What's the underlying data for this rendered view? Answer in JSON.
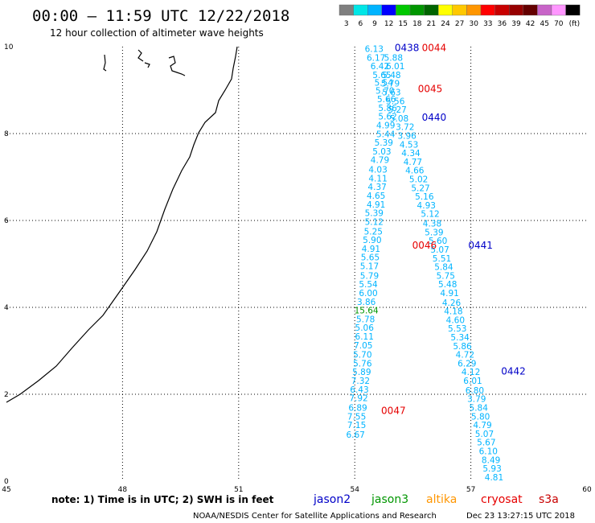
{
  "header": {
    "title": "00:00 — 11:59 UTC 12/22/2018",
    "subtitle": "12 hour collection of altimeter wave heights"
  },
  "colorbar": {
    "colors": [
      "#7f7f7f",
      "#00e6e6",
      "#00b4ff",
      "#0000ff",
      "#00c800",
      "#009600",
      "#006400",
      "#ffff00",
      "#ffc800",
      "#ff9600",
      "#ff0000",
      "#c80000",
      "#960000",
      "#640000",
      "#c864c8",
      "#ff96ff",
      "#000000"
    ],
    "labels": [
      "3",
      "6",
      "9",
      "12",
      "15",
      "18",
      "21",
      "24",
      "27",
      "30",
      "33",
      "36",
      "39",
      "42",
      "45",
      "70",
      "(ft)"
    ]
  },
  "axes": {
    "x_ticks": [
      "45",
      "48",
      "51",
      "54",
      "57",
      "60"
    ],
    "x_values": [
      45,
      48,
      51,
      54,
      57,
      60
    ],
    "y_ticks": [
      "0",
      "2",
      "4",
      "6",
      "8",
      "10"
    ],
    "y_values": [
      0,
      2,
      4,
      6,
      8,
      10
    ],
    "xlim": [
      45,
      60
    ],
    "ylim": [
      0,
      10
    ]
  },
  "colors": {
    "jason2": "#0000c8",
    "jason3": "#009600",
    "altika": "#ff9600",
    "cryosat": "#e60000",
    "s3a": "#c80000",
    "wave": "#00b4ff",
    "wave_green": "#009600"
  },
  "track_a": [
    {
      "x": 54.5,
      "y": 9.88,
      "v": "6.13"
    },
    {
      "x": 54.55,
      "y": 9.68,
      "v": "6.17"
    },
    {
      "x": 54.65,
      "y": 9.48,
      "v": "6.42"
    },
    {
      "x": 54.7,
      "y": 9.28,
      "v": "5.65"
    },
    {
      "x": 54.75,
      "y": 9.1,
      "v": "5.54"
    },
    {
      "x": 54.78,
      "y": 8.92,
      "v": "5.70"
    },
    {
      "x": 54.82,
      "y": 8.72,
      "v": "5.66"
    },
    {
      "x": 54.85,
      "y": 8.52,
      "v": "5.86"
    },
    {
      "x": 54.85,
      "y": 8.32,
      "v": "5.62"
    },
    {
      "x": 54.8,
      "y": 8.12,
      "v": "4.99"
    },
    {
      "x": 54.8,
      "y": 7.92,
      "v": "5.44"
    },
    {
      "x": 54.75,
      "y": 7.72,
      "v": "5.39"
    },
    {
      "x": 54.7,
      "y": 7.52,
      "v": "5.03"
    },
    {
      "x": 54.65,
      "y": 7.32,
      "v": "4.79"
    },
    {
      "x": 54.6,
      "y": 7.1,
      "v": "4.03"
    },
    {
      "x": 54.6,
      "y": 6.9,
      "v": "4.11"
    },
    {
      "x": 54.58,
      "y": 6.7,
      "v": "4.37"
    },
    {
      "x": 54.55,
      "y": 6.5,
      "v": "4.65"
    },
    {
      "x": 54.55,
      "y": 6.3,
      "v": "4.91"
    },
    {
      "x": 54.5,
      "y": 6.1,
      "v": "5.39"
    },
    {
      "x": 54.5,
      "y": 5.9,
      "v": "5.12"
    },
    {
      "x": 54.48,
      "y": 5.68,
      "v": "5.25"
    },
    {
      "x": 54.45,
      "y": 5.48,
      "v": "5.90"
    },
    {
      "x": 54.42,
      "y": 5.28,
      "v": "4.91"
    },
    {
      "x": 54.4,
      "y": 5.08,
      "v": "5.65"
    },
    {
      "x": 54.38,
      "y": 4.88,
      "v": "5.17"
    },
    {
      "x": 54.38,
      "y": 4.66,
      "v": "5.79"
    },
    {
      "x": 54.35,
      "y": 4.46,
      "v": "5.54"
    },
    {
      "x": 54.35,
      "y": 4.26,
      "v": "6.00"
    },
    {
      "x": 54.3,
      "y": 4.06,
      "v": "3.86"
    },
    {
      "x": 54.3,
      "y": 3.86,
      "v": "15.64"
    },
    {
      "x": 54.28,
      "y": 3.66,
      "v": "5.78"
    },
    {
      "x": 54.25,
      "y": 3.46,
      "v": "5.06"
    },
    {
      "x": 54.25,
      "y": 3.26,
      "v": "6.11"
    },
    {
      "x": 54.22,
      "y": 3.06,
      "v": "7.05"
    },
    {
      "x": 54.2,
      "y": 2.84,
      "v": "5.70"
    },
    {
      "x": 54.2,
      "y": 2.64,
      "v": "5.76"
    },
    {
      "x": 54.18,
      "y": 2.44,
      "v": "5.89"
    },
    {
      "x": 54.15,
      "y": 2.24,
      "v": "7.32"
    },
    {
      "x": 54.12,
      "y": 2.04,
      "v": "6.43"
    },
    {
      "x": 54.1,
      "y": 1.84,
      "v": "7.92"
    },
    {
      "x": 54.08,
      "y": 1.62,
      "v": "6.89"
    },
    {
      "x": 54.05,
      "y": 1.42,
      "v": "7.55"
    },
    {
      "x": 54.05,
      "y": 1.22,
      "v": "7.15"
    },
    {
      "x": 54.02,
      "y": 1.0,
      "v": "6.67"
    }
  ],
  "track_b": [
    {
      "x": 55.0,
      "y": 9.68,
      "v": "5.88"
    },
    {
      "x": 55.05,
      "y": 9.48,
      "v": "6.01"
    },
    {
      "x": 54.95,
      "y": 9.28,
      "v": "5.48"
    },
    {
      "x": 54.92,
      "y": 9.08,
      "v": "5.79"
    },
    {
      "x": 54.95,
      "y": 8.88,
      "v": "5.63"
    },
    {
      "x": 55.05,
      "y": 8.68,
      "v": "5.56"
    },
    {
      "x": 55.1,
      "y": 8.48,
      "v": "5.27"
    },
    {
      "x": 55.15,
      "y": 8.28,
      "v": "5.08"
    },
    {
      "x": 55.3,
      "y": 8.08,
      "v": "3.72"
    },
    {
      "x": 55.35,
      "y": 7.88,
      "v": "3.96"
    },
    {
      "x": 55.4,
      "y": 7.68,
      "v": "4.53"
    },
    {
      "x": 55.45,
      "y": 7.48,
      "v": "4.34"
    },
    {
      "x": 55.5,
      "y": 7.28,
      "v": "4.77"
    },
    {
      "x": 55.55,
      "y": 7.08,
      "v": "4.66"
    },
    {
      "x": 55.65,
      "y": 6.88,
      "v": "5.02"
    },
    {
      "x": 55.7,
      "y": 6.68,
      "v": "5.27"
    },
    {
      "x": 55.8,
      "y": 6.48,
      "v": "5.16"
    },
    {
      "x": 55.85,
      "y": 6.28,
      "v": "4.93"
    },
    {
      "x": 55.95,
      "y": 6.08,
      "v": "5.12"
    },
    {
      "x": 56.0,
      "y": 5.86,
      "v": "4.38"
    },
    {
      "x": 56.05,
      "y": 5.66,
      "v": "5.39"
    },
    {
      "x": 56.15,
      "y": 5.46,
      "v": "5.60"
    },
    {
      "x": 56.2,
      "y": 5.26,
      "v": "5.07"
    },
    {
      "x": 56.25,
      "y": 5.06,
      "v": "5.51"
    },
    {
      "x": 56.3,
      "y": 4.86,
      "v": "5.84"
    },
    {
      "x": 56.35,
      "y": 4.66,
      "v": "5.75"
    },
    {
      "x": 56.4,
      "y": 4.46,
      "v": "5.48"
    },
    {
      "x": 56.45,
      "y": 4.26,
      "v": "4.91"
    },
    {
      "x": 56.5,
      "y": 4.04,
      "v": "4.26"
    },
    {
      "x": 56.55,
      "y": 3.84,
      "v": "4.18"
    },
    {
      "x": 56.6,
      "y": 3.64,
      "v": "4.60"
    },
    {
      "x": 56.65,
      "y": 3.44,
      "v": "5.53"
    },
    {
      "x": 56.72,
      "y": 3.24,
      "v": "5.34"
    },
    {
      "x": 56.78,
      "y": 3.04,
      "v": "5.86"
    },
    {
      "x": 56.85,
      "y": 2.84,
      "v": "4.72"
    },
    {
      "x": 56.9,
      "y": 2.64,
      "v": "6.29"
    },
    {
      "x": 57.0,
      "y": 2.44,
      "v": "4.12"
    },
    {
      "x": 57.05,
      "y": 2.24,
      "v": "6.01"
    },
    {
      "x": 57.1,
      "y": 2.02,
      "v": "6.80"
    },
    {
      "x": 57.15,
      "y": 1.82,
      "v": "3.79"
    },
    {
      "x": 57.2,
      "y": 1.62,
      "v": "5.84"
    },
    {
      "x": 57.25,
      "y": 1.42,
      "v": "5.80"
    },
    {
      "x": 57.3,
      "y": 1.22,
      "v": "4.79"
    },
    {
      "x": 57.35,
      "y": 1.02,
      "v": "5.07"
    },
    {
      "x": 57.4,
      "y": 0.82,
      "v": "5.67"
    },
    {
      "x": 57.45,
      "y": 0.62,
      "v": "6.10"
    },
    {
      "x": 57.52,
      "y": 0.42,
      "v": "8.49"
    },
    {
      "x": 57.55,
      "y": 0.22,
      "v": "5.93"
    },
    {
      "x": 57.6,
      "y": 0.02,
      "v": "4.81"
    }
  ],
  "pass_labels": [
    {
      "x": 55.35,
      "y": 9.9,
      "v": "0438",
      "sat": "jason2"
    },
    {
      "x": 56.05,
      "y": 9.9,
      "v": "0044",
      "sat": "cryosat"
    },
    {
      "x": 55.95,
      "y": 8.95,
      "v": "0045",
      "sat": "cryosat"
    },
    {
      "x": 56.05,
      "y": 8.3,
      "v": "0440",
      "sat": "jason2"
    },
    {
      "x": 55.8,
      "y": 5.35,
      "v": "0046",
      "sat": "cryosat"
    },
    {
      "x": 57.25,
      "y": 5.35,
      "v": "0441",
      "sat": "jason2"
    },
    {
      "x": 58.1,
      "y": 2.45,
      "v": "0442",
      "sat": "jason2"
    },
    {
      "x": 55.0,
      "y": 1.55,
      "v": "0047",
      "sat": "cryosat"
    }
  ],
  "footer": {
    "note": "note: 1) Time is in UTC; 2) SWH is in feet",
    "satellites": [
      {
        "name": "jason2",
        "key": "jason2"
      },
      {
        "name": "jason3",
        "key": "jason3"
      },
      {
        "name": "altika",
        "key": "altika"
      },
      {
        "name": "cryosat",
        "key": "cryosat"
      },
      {
        "name": "s3a",
        "key": "s3a"
      }
    ],
    "credit": "NOAA/NESDIS Center for Satellite Applications and Research",
    "timestamp": "Dec 23 13:27:15 UTC 2018"
  }
}
